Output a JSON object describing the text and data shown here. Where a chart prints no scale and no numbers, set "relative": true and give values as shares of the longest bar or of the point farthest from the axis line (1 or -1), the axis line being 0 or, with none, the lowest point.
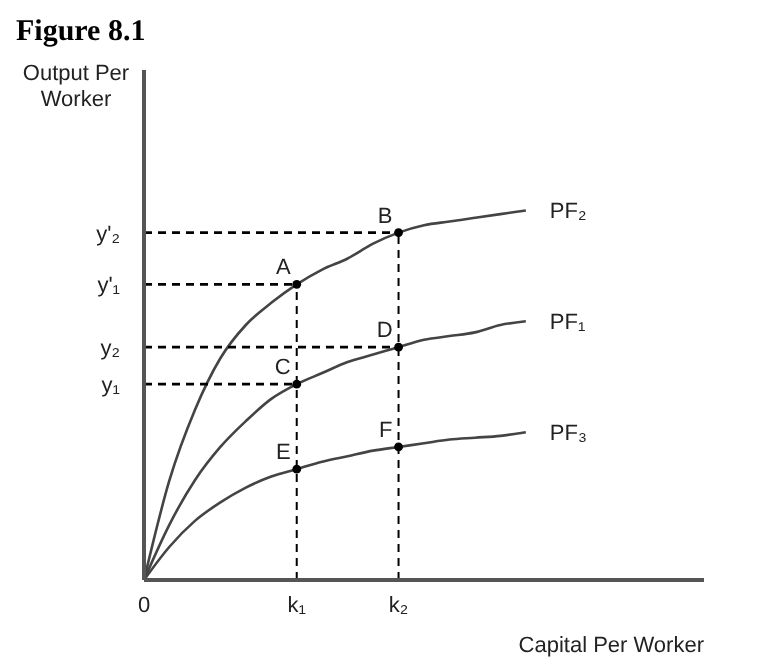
{
  "chart_data": {
    "type": "line",
    "title": "Figure 8.1",
    "xlabel": "Capital Per Worker",
    "ylabel": "Output Per Worker",
    "relative": true,
    "categories": [
      "0",
      null,
      null,
      null,
      null,
      null,
      "k₁",
      null,
      null,
      null,
      "k₂",
      null,
      null,
      null,
      null,
      null,
      null,
      null,
      null,
      null,
      null,
      null,
      null
    ],
    "series": [
      {
        "name": "PF₂",
        "color": "#444444",
        "values": [
          0,
          0.27,
          0.46,
          0.6,
          0.69,
          0.75,
          0.8,
          0.84,
          0.87,
          0.91,
          0.94,
          0.96,
          0.97,
          0.98,
          0.99,
          1.0,
          null,
          null,
          null,
          null,
          null,
          null,
          null
        ]
      },
      {
        "name": "PF₁",
        "color": "#444444",
        "values": [
          0,
          0.15,
          0.27,
          0.36,
          0.43,
          0.49,
          0.53,
          0.56,
          0.59,
          0.61,
          0.63,
          0.65,
          0.66,
          0.67,
          0.69,
          0.7,
          null,
          null,
          null,
          null,
          null,
          null,
          null
        ]
      },
      {
        "name": "PF₃",
        "color": "#444444",
        "values": [
          0,
          0.09,
          0.16,
          0.21,
          0.25,
          0.28,
          0.3,
          0.32,
          0.335,
          0.35,
          0.36,
          0.37,
          0.38,
          0.385,
          0.39,
          0.4,
          null,
          null,
          null,
          null,
          null,
          null,
          null
        ]
      },
      {
        "type": "line",
        "name": "y'₂",
        "line_style": "dashed",
        "color": "#000000",
        "x": [
          "0",
          "k₂"
        ],
        "values": [
          0.94,
          0.94
        ]
      },
      {
        "type": "line",
        "name": "y'₁",
        "line_style": "dashed",
        "color": "#000000",
        "x": [
          "0",
          "k₁"
        ],
        "values": [
          0.8,
          0.8
        ]
      },
      {
        "type": "line",
        "name": "y₂",
        "line_style": "dashed",
        "color": "#000000",
        "x": [
          "0",
          "k₂"
        ],
        "values": [
          0.63,
          0.63
        ]
      },
      {
        "type": "line",
        "name": "y₁",
        "line_style": "dashed",
        "color": "#000000",
        "x": [
          "0",
          "k₁"
        ],
        "values": [
          0.53,
          0.53
        ]
      },
      {
        "type": "line",
        "line_style": "dashed",
        "color": "#000000",
        "x": [
          "k₁",
          "k₁"
        ],
        "values": [
          0,
          0.8
        ]
      },
      {
        "type": "line",
        "line_style": "dashed",
        "color": "#000000",
        "x": [
          "k₂",
          "k₂"
        ],
        "values": [
          0,
          0.94
        ]
      },
      {
        "type": "scatter",
        "marker": "circle",
        "color": "#000000",
        "x": [
          "k₁",
          "k₂",
          "k₁",
          "k₂",
          "k₁",
          "k₂"
        ],
        "values": [
          0.8,
          0.94,
          0.53,
          0.63,
          0.3,
          0.36
        ]
      }
    ],
    "annotations": [
      {
        "text": "A",
        "x": "k₁",
        "y": 0.8
      },
      {
        "text": "B",
        "x": "k₂",
        "y": 0.94
      },
      {
        "text": "C",
        "x": "k₁",
        "y": 0.53
      },
      {
        "text": "D",
        "x": "k₂",
        "y": 0.63
      },
      {
        "text": "E",
        "x": "k₁",
        "y": 0.3
      },
      {
        "text": "F",
        "x": "k₂",
        "y": 0.36
      }
    ],
    "marker": "none",
    "line_style": "solid",
    "grid": false,
    "legend": false
  }
}
